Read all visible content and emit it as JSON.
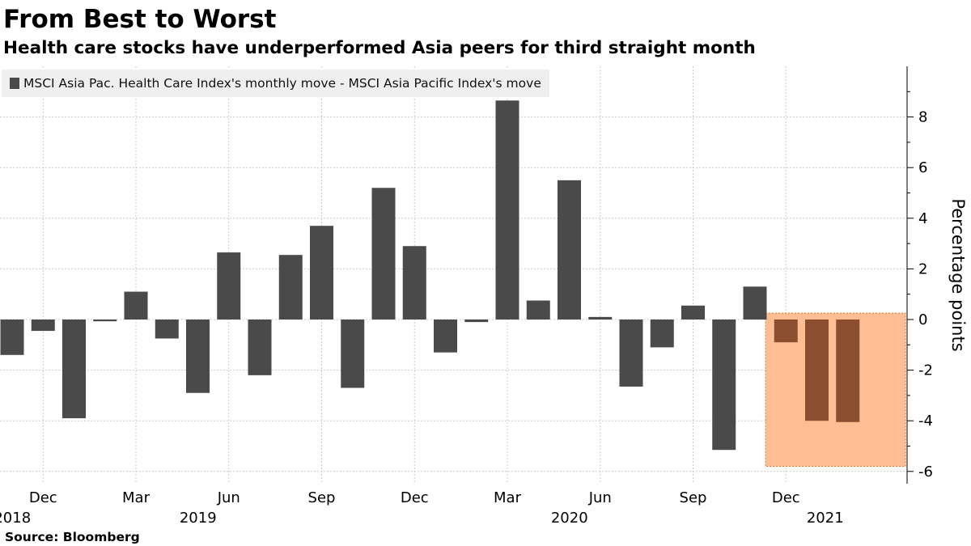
{
  "title": "From Best to Worst",
  "subtitle": "Health care stocks have underperformed Asia peers for third straight month",
  "source": "Source:  Bloomberg",
  "colors": {
    "bar": "#4a4a4a",
    "highlight_bar": "#8b4f2f",
    "highlight_box": "#ffbd94",
    "highlight_border": "#e0701f",
    "grid": "#cccccc"
  },
  "chart_data": {
    "type": "bar",
    "title": "From Best to Worst",
    "subtitle": "Health care stocks have underperformed Asia peers for third straight month",
    "legend": [
      "MSCI Asia Pac. Health Care Index's monthly move - MSCI Asia Pacific Index's move"
    ],
    "ylabel": "Percentage points",
    "xlabel": "",
    "ylim": [
      -6.5,
      10
    ],
    "yticks": [
      -6,
      -4,
      -2,
      0,
      2,
      4,
      6,
      8
    ],
    "ytick_labels": [
      "-6",
      "-4",
      "-2",
      "0",
      "2",
      "4",
      "6",
      "8"
    ],
    "categories": [
      "Nov 2018",
      "Dec 2018",
      "Jan 2019",
      "Feb 2019",
      "Mar 2019",
      "Apr 2019",
      "May 2019",
      "Jun 2019",
      "Jul 2019",
      "Aug 2019",
      "Sep 2019",
      "Oct 2019",
      "Nov 2019",
      "Dec 2019",
      "Jan 2020",
      "Feb 2020",
      "Mar 2020",
      "Apr 2020",
      "May 2020",
      "Jun 2020",
      "Jul 2020",
      "Aug 2020",
      "Sep 2020",
      "Oct 2020",
      "Nov 2020",
      "Dec 2020",
      "Jan 2021",
      "Feb 2021"
    ],
    "values": [
      -1.4,
      -0.45,
      -3.9,
      -0.07,
      1.1,
      -0.75,
      -2.9,
      2.65,
      -2.2,
      2.55,
      3.7,
      -2.7,
      5.2,
      2.9,
      -1.3,
      -0.1,
      8.65,
      0.75,
      5.5,
      0.1,
      -2.65,
      -1.1,
      0.55,
      -5.15,
      1.3,
      -0.9,
      -4.0,
      -4.05
    ],
    "highlighted_categories": [
      "Dec 2020",
      "Jan 2021",
      "Feb 2021"
    ],
    "highlight_box_yrange": [
      -5.8,
      0.25
    ],
    "xtick_labels": [
      {
        "month": "Dec",
        "year": "2018",
        "category": "Dec 2018"
      },
      {
        "month": "Mar",
        "year": "",
        "category": "Mar 2019"
      },
      {
        "month": "Jun",
        "year": "2019",
        "category": "Jun 2019"
      },
      {
        "month": "Sep",
        "year": "",
        "category": "Sep 2019"
      },
      {
        "month": "Dec",
        "year": "",
        "category": "Dec 2019"
      },
      {
        "month": "Mar",
        "year": "",
        "category": "Mar 2020"
      },
      {
        "month": "Jun",
        "year": "2020",
        "category": "Jun 2020"
      },
      {
        "month": "Sep",
        "year": "",
        "category": "Sep 2020"
      },
      {
        "month": "Dec",
        "year": "",
        "category": "Dec 2020"
      },
      {
        "month": "",
        "year": "2021",
        "category": "Feb 2021"
      }
    ],
    "grid": true,
    "legend_position": "top-left"
  }
}
